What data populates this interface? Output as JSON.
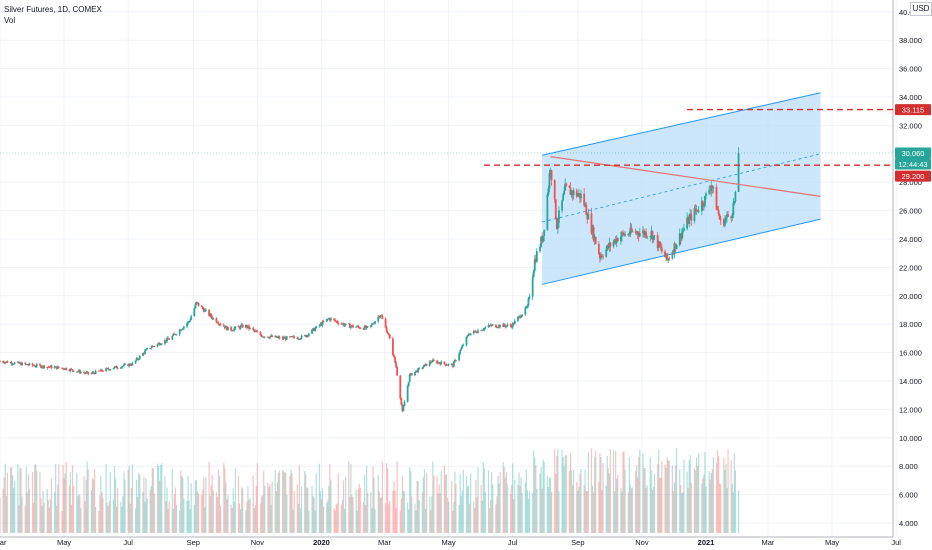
{
  "legend": {
    "symbol_line": "Silver Futures, 1D, COMEX",
    "volume_label": "Vol"
  },
  "currency_badge": "USD",
  "price_tags": {
    "current_price": "30.060",
    "countdown": "12:44:43",
    "resistance_level": "33.115",
    "support_level": "29.200"
  },
  "colors": {
    "up": "#26a69a",
    "down": "#ef5350",
    "channel_fill": "#bbdefb",
    "channel_line": "#2196f3",
    "trendline": "#e57373",
    "level_line": "#d32f2f",
    "current_price_tag": "#26a69a",
    "level_tag": "#d32f2f"
  },
  "chart_data": {
    "type": "candlestick",
    "title": "Silver Futures, 1D, COMEX",
    "x_tick_labels": [
      "Mar",
      "May",
      "Jul",
      "Sep",
      "Nov",
      "2020",
      "Mar",
      "May",
      "Jul",
      "Sep",
      "Nov",
      "2021",
      "Mar",
      "May",
      "Jul"
    ],
    "y_tick_labels": [
      "4.000",
      "6.000",
      "8.000",
      "10.000",
      "12.000",
      "14.000",
      "16.000",
      "18.000",
      "20.000",
      "22.000",
      "24.000",
      "26.000",
      "28.000",
      "32.000",
      "34.000",
      "36.000",
      "38.000",
      "40.000"
    ],
    "ylim": [
      3.2,
      40.5
    ],
    "grid": true,
    "price_path": [
      [
        "2019-03-01",
        15.4
      ],
      [
        "2019-04-01",
        15.1
      ],
      [
        "2019-05-01",
        14.9
      ],
      [
        "2019-05-25",
        14.5
      ],
      [
        "2019-06-15",
        14.9
      ],
      [
        "2019-07-05",
        15.2
      ],
      [
        "2019-07-20",
        16.3
      ],
      [
        "2019-08-10",
        17.0
      ],
      [
        "2019-08-28",
        18.2
      ],
      [
        "2019-09-04",
        19.5
      ],
      [
        "2019-09-20",
        18.4
      ],
      [
        "2019-10-05",
        17.6
      ],
      [
        "2019-10-20",
        17.9
      ],
      [
        "2019-11-05",
        17.2
      ],
      [
        "2019-11-25",
        17.0
      ],
      [
        "2019-12-15",
        17.1
      ],
      [
        "2020-01-08",
        18.4
      ],
      [
        "2020-01-25",
        17.9
      ],
      [
        "2020-02-15",
        17.7
      ],
      [
        "2020-02-26",
        18.7
      ],
      [
        "2020-03-05",
        17.2
      ],
      [
        "2020-03-12",
        15.0
      ],
      [
        "2020-03-18",
        11.8
      ],
      [
        "2020-03-25",
        14.4
      ],
      [
        "2020-04-15",
        15.4
      ],
      [
        "2020-05-05",
        15.1
      ],
      [
        "2020-05-20",
        17.3
      ],
      [
        "2020-06-10",
        17.9
      ],
      [
        "2020-06-30",
        17.9
      ],
      [
        "2020-07-15",
        19.2
      ],
      [
        "2020-07-22",
        22.5
      ],
      [
        "2020-07-30",
        24.3
      ],
      [
        "2020-08-06",
        29.2
      ],
      [
        "2020-08-12",
        25.0
      ],
      [
        "2020-08-20",
        27.5
      ],
      [
        "2020-09-05",
        27.0
      ],
      [
        "2020-09-22",
        22.8
      ],
      [
        "2020-10-10",
        24.2
      ],
      [
        "2020-10-25",
        24.5
      ],
      [
        "2020-11-10",
        24.4
      ],
      [
        "2020-11-25",
        22.5
      ],
      [
        "2020-12-15",
        25.3
      ],
      [
        "2020-12-31",
        26.8
      ],
      [
        "2021-01-06",
        27.9
      ],
      [
        "2021-01-15",
        25.1
      ],
      [
        "2021-01-25",
        25.8
      ],
      [
        "2021-01-29",
        26.9
      ],
      [
        "2021-02-01",
        30.06
      ]
    ],
    "channel": {
      "upper": [
        [
          "2020-07-29",
          29.9
        ],
        [
          "2021-04-20",
          34.3
        ]
      ],
      "lower": [
        [
          "2020-07-29",
          20.8
        ],
        [
          "2021-04-20",
          25.4
        ]
      ]
    },
    "channel_midline": [
      [
        "2020-07-29",
        25.2
      ],
      [
        "2021-04-20",
        30.0
      ]
    ],
    "trendline": [
      [
        "2020-08-06",
        29.8
      ],
      [
        "2021-04-20",
        27.0
      ]
    ],
    "horizontal_levels": [
      33.115,
      29.2
    ],
    "current_price": 30.06
  }
}
